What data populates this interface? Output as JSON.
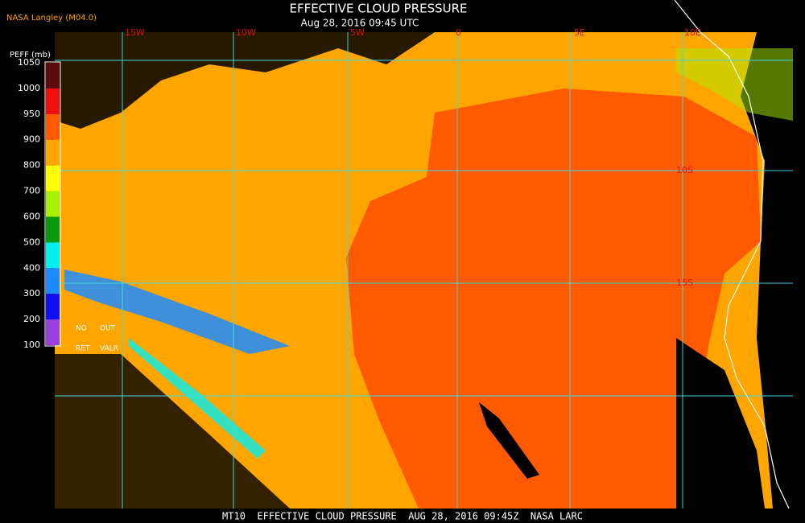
{
  "header": {
    "title": "EFFECTIVE CLOUD PRESSURE",
    "subtitle": "Aug 28, 2016 09:45 UTC",
    "credit": "NASA Langley (M04.0)"
  },
  "legend": {
    "title": "PEFF (mb)",
    "ticks": [
      1050,
      1000,
      950,
      900,
      800,
      700,
      600,
      500,
      400,
      300,
      200,
      100
    ],
    "colors": [
      "#5c0c0c",
      "#ee1010",
      "#ff5a00",
      "#ffa500",
      "#ffff00",
      "#a8f000",
      "#0a9a10",
      "#00f0f0",
      "#1e8cff",
      "#1010ee",
      "#9a40e0"
    ],
    "notes": [
      "NO",
      "OUT",
      "RET",
      "VALR"
    ]
  },
  "map": {
    "lon_labels": [
      "15W",
      "10W",
      "5W",
      "0",
      "5E",
      "10E"
    ],
    "lat_labels": [
      "10S",
      "15S"
    ]
  },
  "footer": "MT10  EFFECTIVE CLOUD PRESSURE  AUG 28, 2016 09:45Z  NASA LARC"
}
